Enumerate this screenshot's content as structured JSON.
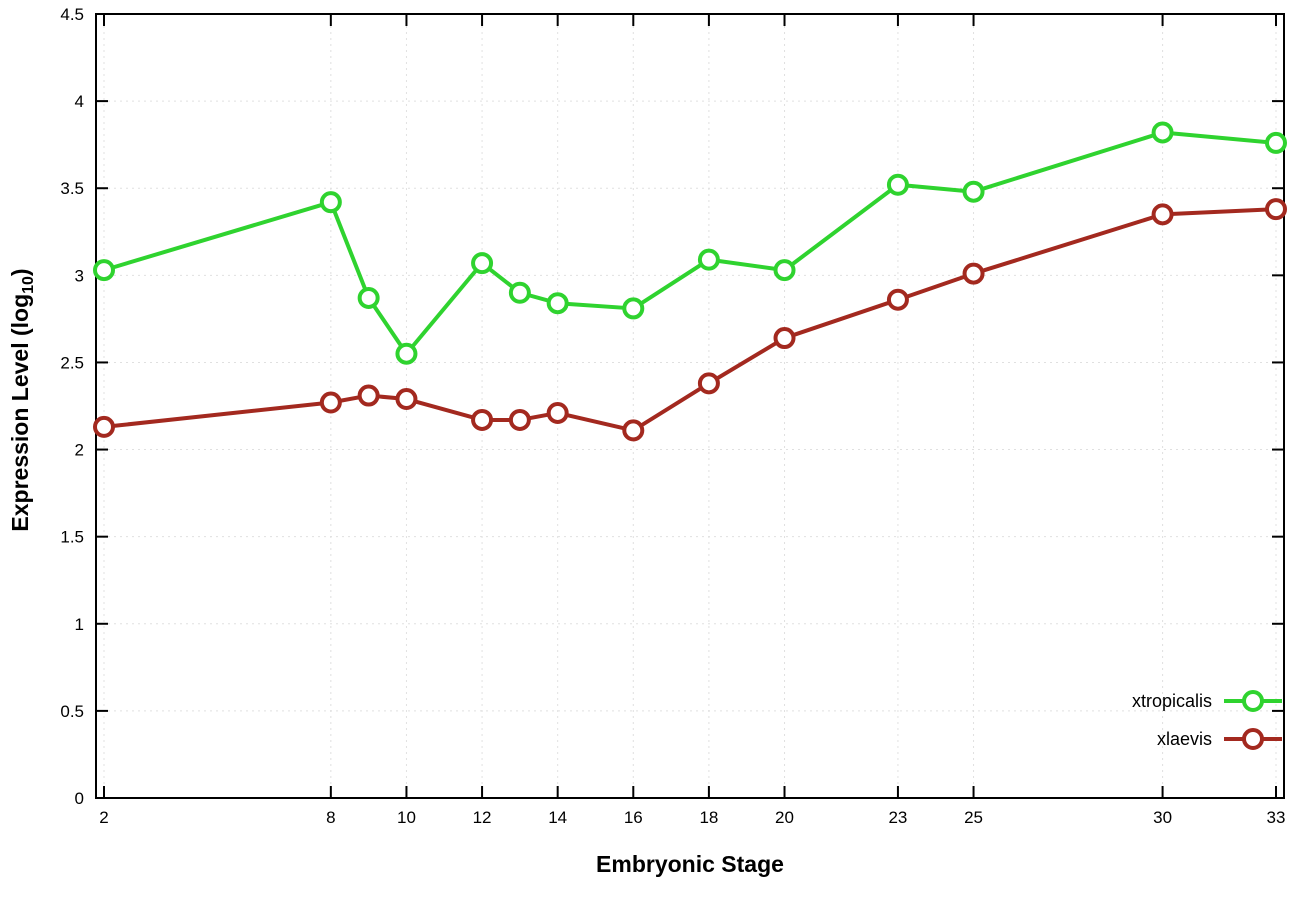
{
  "page": {
    "background": "#ffffff"
  },
  "chart_data": {
    "type": "line",
    "title": "",
    "xlabel": "Embryonic Stage",
    "ylabel": "Expression Level (log10)",
    "ylabel_display": {
      "main": "Expression Level (log",
      "sub": "10",
      "close": ")"
    },
    "x": [
      2,
      8,
      9,
      10,
      12,
      13,
      14,
      16,
      18,
      20,
      23,
      25,
      30,
      33
    ],
    "series": [
      {
        "name": "xtropicalis",
        "color": "#2fd32f",
        "values": [
          3.03,
          3.42,
          2.87,
          2.55,
          3.07,
          2.9,
          2.84,
          2.81,
          3.09,
          3.03,
          3.52,
          3.48,
          3.82,
          3.76
        ]
      },
      {
        "name": "xlaevis",
        "color": "#a3291f",
        "values": [
          2.13,
          2.27,
          2.31,
          2.29,
          2.17,
          2.17,
          2.21,
          2.11,
          2.38,
          2.64,
          2.86,
          3.01,
          3.35,
          3.38
        ]
      }
    ],
    "x_ticks": [
      2,
      8,
      10,
      12,
      14,
      16,
      18,
      20,
      23,
      25,
      30,
      33
    ],
    "y_ticks": [
      0,
      0.5,
      1,
      1.5,
      2,
      2.5,
      3,
      3.5,
      4,
      4.5
    ],
    "xlim": [
      2,
      33
    ],
    "ylim": [
      0,
      4.5
    ],
    "grid": true,
    "legend": {
      "position": "bottom-right",
      "entries": [
        "xtropicalis",
        "xlaevis"
      ]
    },
    "colors": {
      "axis": "#000000",
      "grid": "#e0e0e0",
      "marker_fill": "#ffffff"
    }
  }
}
